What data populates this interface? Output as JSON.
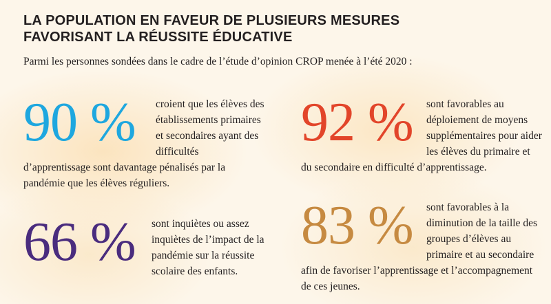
{
  "title": {
    "line1": "LA POPULATION EN FAVEUR DE PLUSIEURS MESURES",
    "line2": "FAVORISANT LA RÉUSSITE ÉDUCATIVE"
  },
  "intro": "Parmi les personnes sondées dans le cadre de l’étude d’opinion CROP menée à l’été 2020 :",
  "stats": [
    {
      "percent": "90 %",
      "text": "croient que les élèves des établissements primaires et secondaires ayant des difficultés d’apprentissage sont davantage pénalisés par la pandémie que les élèves réguliers.",
      "color": "#1ea7df"
    },
    {
      "percent": "92 %",
      "text": "sont favorables au déploiement de moyens supplémentaires pour aider les élèves du primaire et du secondaire en difficulté d’apprentissage.",
      "color": "#e2452a"
    },
    {
      "percent": "66 %",
      "text": "sont inquiètes ou assez inquiètes de l’impact de la pandémie sur la réussite scolaire des enfants.",
      "color": "#4a2c7e"
    },
    {
      "percent": "83 %",
      "text": "sont favorables à la diminution de la taille des groupes d’élèves au primaire et au secondaire afin de favoriser l’apprentissage et l’accompagnement de ces jeunes.",
      "color": "#c68a41"
    }
  ]
}
